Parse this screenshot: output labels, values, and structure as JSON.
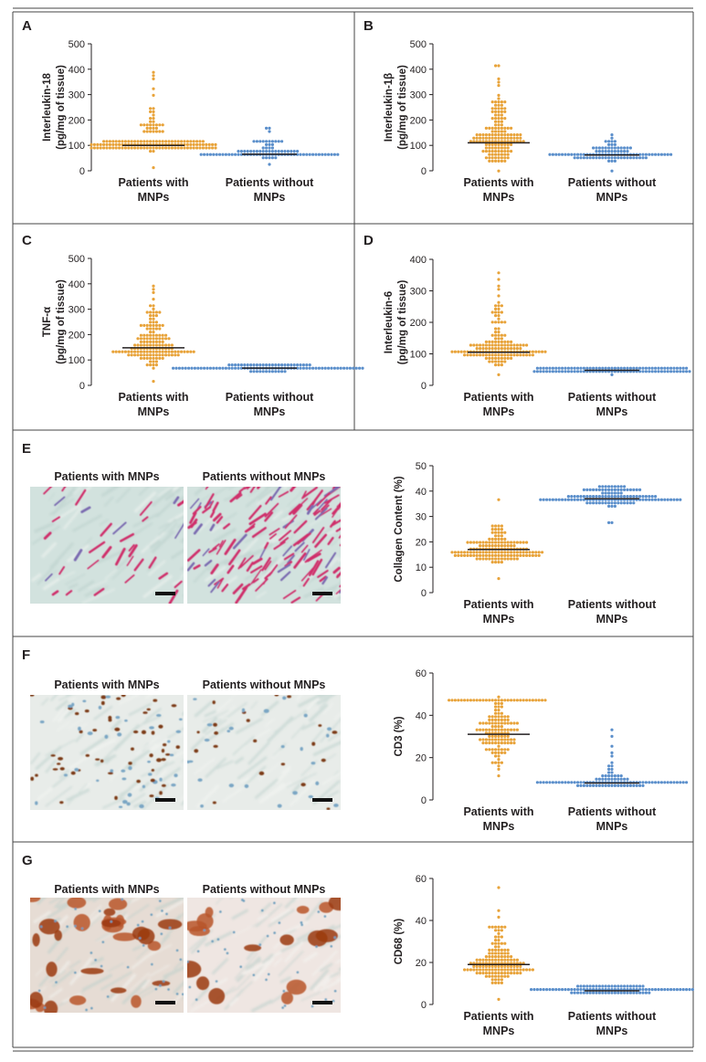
{
  "colors": {
    "with": "#e8a33a",
    "without": "#5b8fcb",
    "axis": "#231f20",
    "rule": "#444444",
    "median": "#231f20"
  },
  "legend": {
    "with_line1": "Patients with",
    "without_line1": "Patients without",
    "line2": "MNPs",
    "img_with": "Patients with MNPs",
    "img_without": "Patients without MNPs"
  },
  "images": [
    {
      "panel": "E",
      "left_stain": "sparse-red",
      "right_stain": "dense-red"
    },
    {
      "panel": "F",
      "left_stain": "brown-nuclei",
      "right_stain": "sparse-brown-nuclei"
    },
    {
      "panel": "G",
      "left_stain": "dense-brown",
      "right_stain": "brown-clusters"
    }
  ],
  "chart_data": [
    {
      "panel": "A",
      "type": "scatter",
      "title": "",
      "ylabel_line1": "Interleukin-18",
      "ylabel_line2": "(pg/mg of tissue)",
      "ylim": [
        0,
        500
      ],
      "yticks": [
        0,
        100,
        200,
        300,
        400,
        500
      ],
      "categories": [
        "Patients with MNPs",
        "Patients without MNPs"
      ],
      "series": [
        {
          "name": "Patients with MNPs",
          "median": 100,
          "n": 150,
          "min": 15,
          "max": 382,
          "range": [
            80,
            125
          ],
          "tail": [
            150,
            250
          ],
          "outliers": [
            300,
            320,
            365,
            378,
            382
          ]
        },
        {
          "name": "Patients without MNPs",
          "median": 65,
          "n": 90,
          "min": 20,
          "max": 170,
          "range": [
            50,
            80
          ],
          "tail": [
            90,
            130
          ],
          "outliers": [
            150,
            162,
            170
          ]
        }
      ]
    },
    {
      "panel": "B",
      "type": "scatter",
      "title": "",
      "ylabel_line1": "Interleukin-1β",
      "ylabel_line2": "(pg/mg of tissue)",
      "ylim": [
        0,
        500
      ],
      "yticks": [
        0,
        100,
        200,
        300,
        400,
        500
      ],
      "categories": [
        "Patients with MNPs",
        "Patients without MNPs"
      ],
      "series": [
        {
          "name": "Patients with MNPs",
          "median": 110,
          "n": 150,
          "min": 5,
          "max": 420,
          "range": [
            30,
            200
          ],
          "tail": [
            200,
            300
          ],
          "outliers": [
            330,
            355,
            365,
            410,
            420
          ]
        },
        {
          "name": "Patients without MNPs",
          "median": 62,
          "n": 100,
          "min": 5,
          "max": 145,
          "range": [
            40,
            80
          ],
          "tail": [
            85,
            120
          ],
          "outliers": [
            130,
            145
          ]
        }
      ]
    },
    {
      "panel": "C",
      "type": "scatter",
      "title": "",
      "ylabel_line1": "TNF-α",
      "ylabel_line2": "(pg/mg of tissue)",
      "ylim": [
        0,
        500
      ],
      "yticks": [
        0,
        100,
        200,
        300,
        400,
        500
      ],
      "categories": [
        "Patients with MNPs",
        "Patients without MNPs"
      ],
      "series": [
        {
          "name": "Patients with MNPs",
          "median": 148,
          "n": 150,
          "min": 15,
          "max": 385,
          "range": [
            60,
            220
          ],
          "tail": [
            220,
            320
          ],
          "outliers": [
            340,
            360,
            375,
            385
          ]
        },
        {
          "name": "Patients without MNPs",
          "median": 68,
          "n": 100,
          "min": 50,
          "max": 85,
          "range": [
            55,
            80
          ],
          "tail": [
            80,
            85
          ],
          "outliers": []
        }
      ]
    },
    {
      "panel": "D",
      "type": "scatter",
      "title": "",
      "ylabel_line1": "Interleukin-6",
      "ylabel_line2": "(pg/mg of tissue)",
      "ylim": [
        0,
        400
      ],
      "yticks": [
        0,
        100,
        200,
        300,
        400
      ],
      "categories": [
        "Patients with MNPs",
        "Patients without MNPs"
      ],
      "series": [
        {
          "name": "Patients with MNPs",
          "median": 105,
          "n": 150,
          "min": 30,
          "max": 355,
          "range": [
            60,
            150
          ],
          "tail": [
            150,
            260
          ],
          "outliers": [
            280,
            300,
            320,
            340,
            355
          ]
        },
        {
          "name": "Patients without MNPs",
          "median": 48,
          "n": 100,
          "min": 35,
          "max": 58,
          "range": [
            40,
            55
          ],
          "tail": [
            55,
            58
          ],
          "outliers": []
        }
      ]
    },
    {
      "panel": "E",
      "type": "scatter",
      "title": "",
      "ylabel_line1": "Collagen Content (%)",
      "ylabel_line2": "",
      "ylim": [
        0,
        50
      ],
      "yticks": [
        0,
        10,
        20,
        30,
        40,
        50
      ],
      "categories": [
        "Patients with MNPs",
        "Patients without MNPs"
      ],
      "series": [
        {
          "name": "Patients with MNPs",
          "median": 17,
          "n": 150,
          "min": 5,
          "max": 37,
          "range": [
            10,
            20
          ],
          "tail": [
            20,
            27
          ],
          "outliers": [
            37
          ]
        },
        {
          "name": "Patients without MNPs",
          "median": 37,
          "n": 130,
          "min": 28,
          "max": 42,
          "range": [
            34,
            40
          ],
          "tail": [
            40,
            42
          ],
          "outliers": [
            28
          ]
        }
      ]
    },
    {
      "panel": "F",
      "type": "scatter",
      "title": "",
      "ylabel_line1": "CD3 (%)",
      "ylabel_line2": "",
      "ylim": [
        0,
        60
      ],
      "yticks": [
        0,
        20,
        40,
        60
      ],
      "categories": [
        "Patients with MNPs",
        "Patients without MNPs"
      ],
      "series": [
        {
          "name": "Patients with MNPs",
          "median": 31,
          "n": 150,
          "min": 11,
          "max": 48,
          "range": [
            12,
            47
          ],
          "tail": [
            47,
            48
          ],
          "outliers": []
        },
        {
          "name": "Patients without MNPs",
          "median": 8,
          "n": 100,
          "min": 6,
          "max": 33,
          "range": [
            6,
            10
          ],
          "tail": [
            10,
            18
          ],
          "outliers": [
            20,
            22,
            25,
            30,
            33
          ]
        }
      ]
    },
    {
      "panel": "G",
      "type": "scatter",
      "title": "",
      "ylabel_line1": "CD68 (%)",
      "ylabel_line2": "",
      "ylim": [
        0,
        60
      ],
      "yticks": [
        0,
        20,
        40,
        60
      ],
      "categories": [
        "Patients with MNPs",
        "Patients without MNPs"
      ],
      "series": [
        {
          "name": "Patients with MNPs",
          "median": 19,
          "n": 150,
          "min": 2,
          "max": 56,
          "range": [
            8,
            25
          ],
          "tail": [
            25,
            38
          ],
          "outliers": [
            42,
            45,
            56
          ]
        },
        {
          "name": "Patients without MNPs",
          "median": 6.5,
          "n": 100,
          "min": 5,
          "max": 8,
          "range": [
            5,
            8
          ],
          "tail": [
            8,
            8
          ],
          "outliers": []
        }
      ]
    }
  ]
}
